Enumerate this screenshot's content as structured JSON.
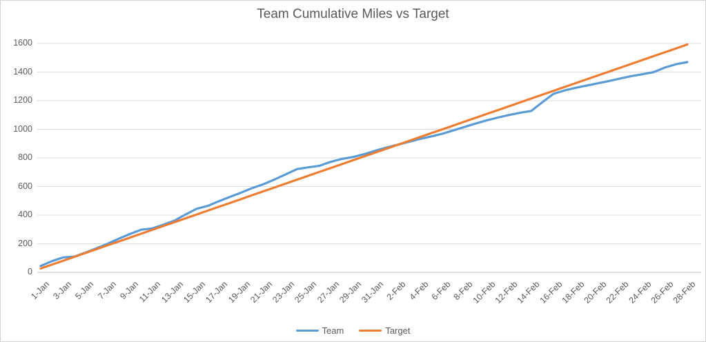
{
  "title": "Team Cumulative Miles vs Target",
  "colors": {
    "team": "#5B9BD5",
    "target": "#ED7D31",
    "gridline": "#D9D9D9",
    "axis_line": "#BFBFBF",
    "text": "#595959"
  },
  "legend": {
    "items": [
      "Team",
      "Target"
    ]
  },
  "chart_data": {
    "type": "line",
    "title": "Team Cumulative Miles vs Target",
    "xlabel": "",
    "ylabel": "",
    "ylim": [
      0,
      1600
    ],
    "y_ticks": [
      0,
      200,
      400,
      600,
      800,
      1000,
      1200,
      1400,
      1600
    ],
    "grid": "horizontal",
    "legend_position": "bottom",
    "x_label_every": 2,
    "categories": [
      "1-Jan",
      "2-Jan",
      "3-Jan",
      "4-Jan",
      "5-Jan",
      "6-Jan",
      "7-Jan",
      "8-Jan",
      "9-Jan",
      "10-Jan",
      "11-Jan",
      "12-Jan",
      "13-Jan",
      "14-Jan",
      "15-Jan",
      "16-Jan",
      "17-Jan",
      "18-Jan",
      "19-Jan",
      "20-Jan",
      "21-Jan",
      "22-Jan",
      "23-Jan",
      "24-Jan",
      "25-Jan",
      "26-Jan",
      "27-Jan",
      "28-Jan",
      "29-Jan",
      "30-Jan",
      "31-Jan",
      "1-Feb",
      "2-Feb",
      "3-Feb",
      "4-Feb",
      "5-Feb",
      "6-Feb",
      "7-Feb",
      "8-Feb",
      "9-Feb",
      "10-Feb",
      "11-Feb",
      "12-Feb",
      "13-Feb",
      "14-Feb",
      "15-Feb",
      "16-Feb",
      "17-Feb",
      "18-Feb",
      "19-Feb",
      "20-Feb",
      "21-Feb",
      "22-Feb",
      "23-Feb",
      "24-Feb",
      "25-Feb",
      "26-Feb",
      "27-Feb",
      "28-Feb"
    ],
    "series": [
      {
        "name": "Team",
        "color": "#5B9BD5",
        "values": [
          45,
          78,
          104,
          110,
          138,
          168,
          200,
          235,
          268,
          298,
          307,
          333,
          362,
          405,
          445,
          465,
          498,
          528,
          558,
          590,
          617,
          650,
          686,
          722,
          734,
          745,
          772,
          793,
          806,
          826,
          850,
          872,
          892,
          912,
          932,
          950,
          968,
          992,
          1016,
          1040,
          1062,
          1082,
          1100,
          1115,
          1128,
          1190,
          1248,
          1272,
          1290,
          1306,
          1322,
          1338,
          1355,
          1372,
          1385,
          1400,
          1432,
          1455,
          1470
        ]
      },
      {
        "name": "Target",
        "color": "#ED7D31",
        "values": [
          27,
          54,
          81,
          108,
          135,
          162,
          189,
          216,
          243,
          270,
          297,
          324,
          351,
          378,
          405,
          432,
          459,
          486,
          513,
          540,
          567,
          594,
          621,
          648,
          675,
          702,
          729,
          756,
          783,
          810,
          837,
          864,
          891,
          918,
          945,
          972,
          999,
          1026,
          1053,
          1080,
          1107,
          1134,
          1161,
          1188,
          1215,
          1242,
          1269,
          1296,
          1323,
          1350,
          1377,
          1404,
          1431,
          1458,
          1485,
          1512,
          1539,
          1566,
          1593
        ]
      }
    ]
  }
}
